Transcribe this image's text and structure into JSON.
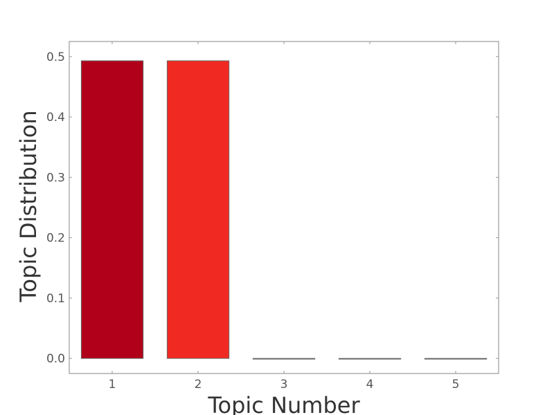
{
  "chart_data": {
    "type": "bar",
    "categories": [
      "1",
      "2",
      "3",
      "4",
      "5"
    ],
    "values": [
      0.493,
      0.493,
      0.0,
      0.0,
      0.0
    ],
    "bar_colors": [
      "#b0001a",
      "#f02a22",
      "#cccccc",
      "#cccccc",
      "#cccccc"
    ],
    "xlabel": "Topic Number",
    "ylabel": "Topic Distribution",
    "ylim": [
      -0.025,
      0.525
    ],
    "yticks": [
      0.0,
      0.1,
      0.2,
      0.3,
      0.4,
      0.5
    ],
    "ytick_labels": [
      "0.0",
      "0.1",
      "0.2",
      "0.3",
      "0.4",
      "0.5"
    ],
    "grid": false,
    "legend": "none"
  }
}
